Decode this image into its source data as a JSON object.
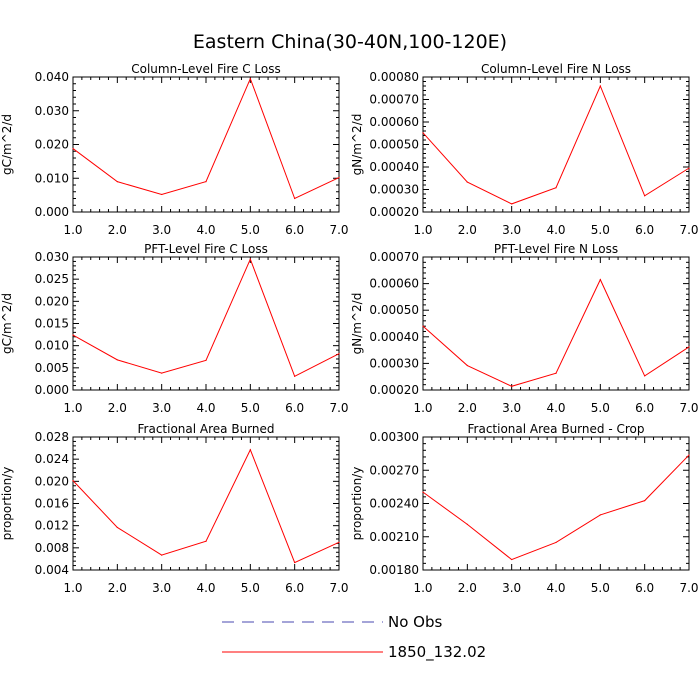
{
  "figure": {
    "title": "Eastern China(30-40N,100-120E)"
  },
  "legend": {
    "items": [
      {
        "label": "No Obs",
        "color": "#4a4ab0",
        "style": "dashed"
      },
      {
        "label": "1850_132.02",
        "color": "#ff0000",
        "style": "solid"
      }
    ]
  },
  "chart_data": [
    {
      "type": "line",
      "title": "Column-Level Fire C Loss",
      "ylabel": "gC/m^2/d",
      "xlim": [
        1.0,
        7.0
      ],
      "ylim": [
        0.0,
        0.04
      ],
      "x_ticks": [
        "1.0",
        "2.0",
        "3.0",
        "4.0",
        "5.0",
        "6.0",
        "7.0"
      ],
      "y_ticks": [
        "0.000",
        "0.010",
        "0.020",
        "0.030",
        "0.040"
      ],
      "series": [
        {
          "name": "1850_132.02",
          "x": [
            1,
            2,
            3,
            4,
            5,
            6,
            7
          ],
          "values": [
            0.0188,
            0.009,
            0.0052,
            0.009,
            0.0395,
            0.004,
            0.0102
          ]
        }
      ]
    },
    {
      "type": "line",
      "title": "Column-Level Fire N Loss",
      "ylabel": "gN/m^2/d",
      "xlim": [
        1.0,
        7.0
      ],
      "ylim": [
        0.0002,
        0.0008
      ],
      "x_ticks": [
        "1.0",
        "2.0",
        "3.0",
        "4.0",
        "5.0",
        "6.0",
        "7.0"
      ],
      "y_ticks": [
        "0.00020",
        "0.00030",
        "0.00040",
        "0.00050",
        "0.00060",
        "0.00070",
        "0.00080"
      ],
      "series": [
        {
          "name": "1850_132.02",
          "x": [
            1,
            2,
            3,
            4,
            5,
            6,
            7
          ],
          "values": [
            0.000552,
            0.000333,
            0.000236,
            0.000308,
            0.00076,
            0.000272,
            0.000395
          ]
        }
      ]
    },
    {
      "type": "line",
      "title": "PFT-Level Fire C Loss",
      "ylabel": "gC/m^2/d",
      "xlim": [
        1.0,
        7.0
      ],
      "ylim": [
        0.0,
        0.03
      ],
      "x_ticks": [
        "1.0",
        "2.0",
        "3.0",
        "4.0",
        "5.0",
        "6.0",
        "7.0"
      ],
      "y_ticks": [
        "0.000",
        "0.005",
        "0.010",
        "0.015",
        "0.020",
        "0.025",
        "0.030"
      ],
      "series": [
        {
          "name": "1850_132.02",
          "x": [
            1,
            2,
            3,
            4,
            5,
            6,
            7
          ],
          "values": [
            0.0124,
            0.0068,
            0.0038,
            0.0067,
            0.0295,
            0.0031,
            0.0082
          ]
        }
      ]
    },
    {
      "type": "line",
      "title": "PFT-Level Fire N Loss",
      "ylabel": "gN/m^2/d",
      "xlim": [
        1.0,
        7.0
      ],
      "ylim": [
        0.0002,
        0.0007
      ],
      "x_ticks": [
        "1.0",
        "2.0",
        "3.0",
        "4.0",
        "5.0",
        "6.0",
        "7.0"
      ],
      "y_ticks": [
        "0.00020",
        "0.00030",
        "0.00040",
        "0.00050",
        "0.00060",
        "0.00070"
      ],
      "series": [
        {
          "name": "1850_132.02",
          "x": [
            1,
            2,
            3,
            4,
            5,
            6,
            7
          ],
          "values": [
            0.00044,
            0.000292,
            0.000214,
            0.000263,
            0.000615,
            0.000253,
            0.000362
          ]
        }
      ]
    },
    {
      "type": "line",
      "title": "Fractional Area Burned",
      "ylabel": "proportion/y",
      "xlim": [
        1.0,
        7.0
      ],
      "ylim": [
        0.004,
        0.029
      ],
      "x_ticks": [
        "1.0",
        "2.0",
        "3.0",
        "4.0",
        "5.0",
        "6.0",
        "7.0"
      ],
      "y_ticks": [
        "0.004",
        "0.008",
        "0.012",
        "0.016",
        "0.020",
        "0.024",
        "0.028"
      ],
      "series": [
        {
          "name": "1850_132.02",
          "x": [
            1,
            2,
            3,
            4,
            5,
            6,
            7
          ],
          "values": [
            0.0208,
            0.012,
            0.0068,
            0.0094,
            0.0266,
            0.0054,
            0.0092
          ]
        }
      ]
    },
    {
      "type": "line",
      "title": "Fractional Area Burned - Crop",
      "ylabel": "proportion/y",
      "xlim": [
        1.0,
        7.0
      ],
      "ylim": [
        0.0018,
        0.0032
      ],
      "x_ticks": [
        "1.0",
        "2.0",
        "3.0",
        "4.0",
        "5.0",
        "6.0",
        "7.0"
      ],
      "y_ticks": [
        "0.00180",
        "0.00210",
        "0.00240",
        "0.00270",
        "0.00300"
      ],
      "series": [
        {
          "name": "1850_132.02",
          "x": [
            1,
            2,
            3,
            4,
            5,
            6,
            7
          ],
          "values": [
            0.00262,
            0.00228,
            0.00191,
            0.00209,
            0.00238,
            0.00253,
            0.00301
          ]
        }
      ]
    }
  ]
}
